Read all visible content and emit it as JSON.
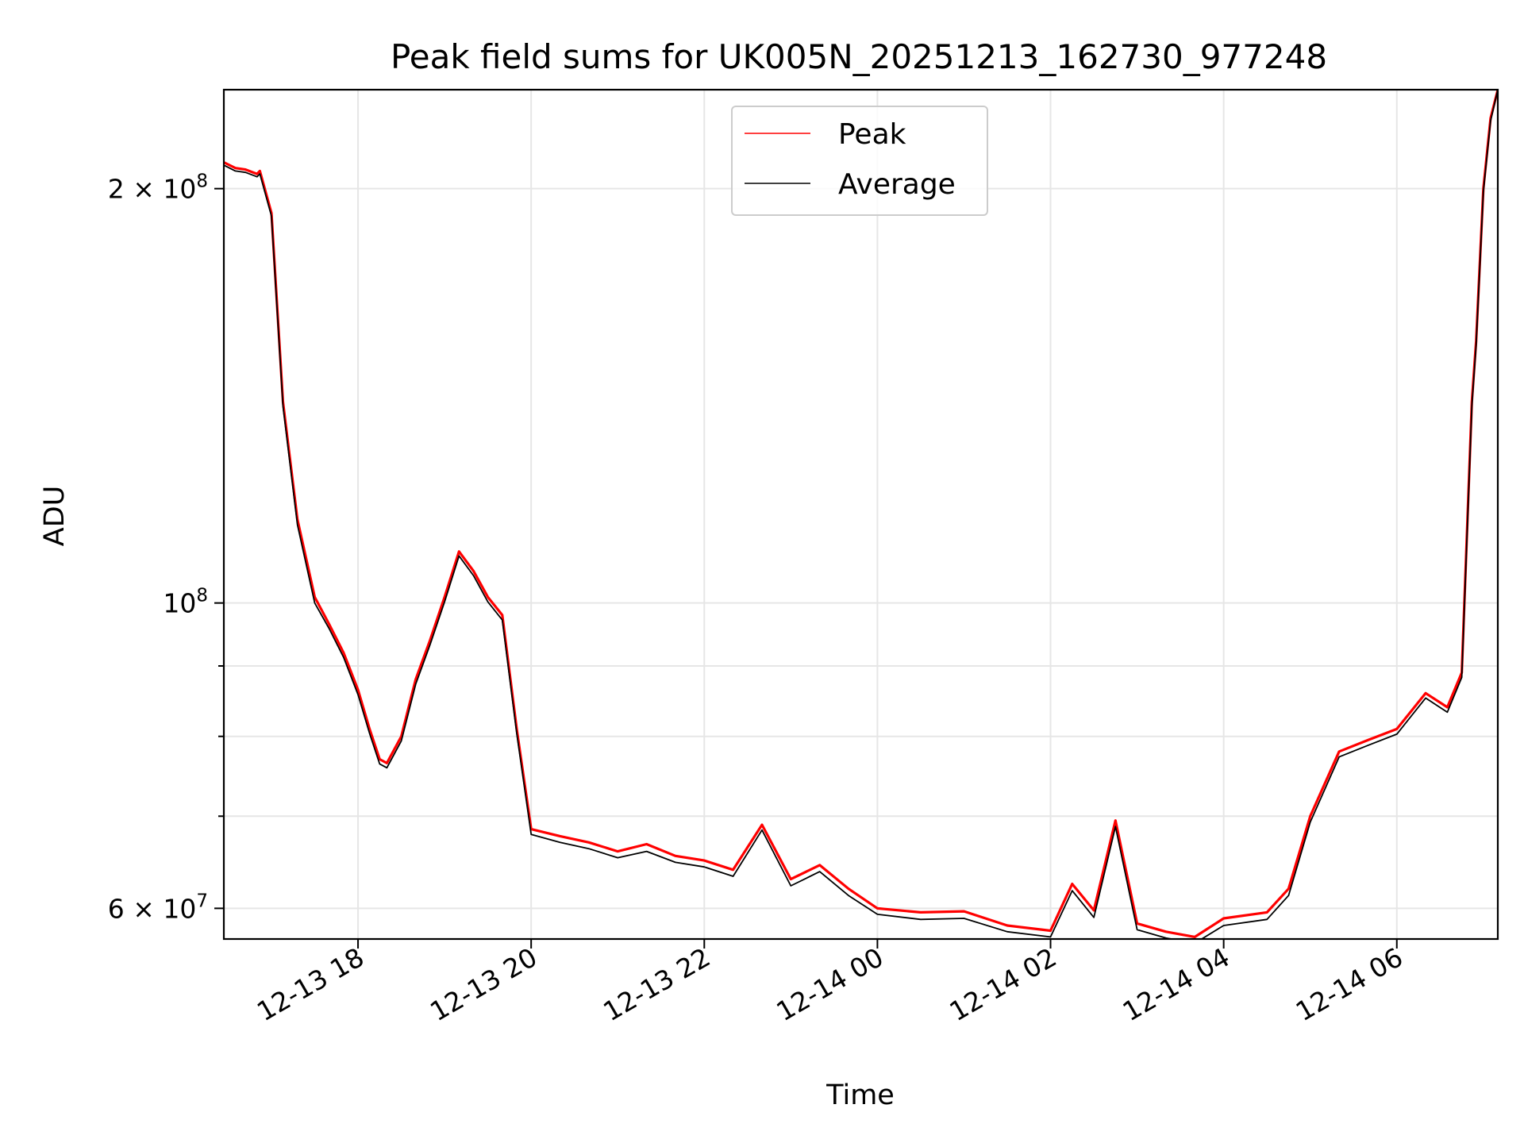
{
  "chart_data": {
    "type": "line",
    "title": "Peak field sums for UK005N_20251213_162730_977248",
    "xlabel": "Time",
    "ylabel": "ADU",
    "yscale": "log",
    "grid": true,
    "legend_position": "upper center",
    "xlim": [
      "2025-12-13 16:27",
      "2025-12-14 07:10"
    ],
    "ylim": [
      57000000,
      236000000
    ],
    "x_ticks": [
      {
        "t": "2025-12-13 18:00",
        "label": "12-13 18"
      },
      {
        "t": "2025-12-13 20:00",
        "label": "12-13 20"
      },
      {
        "t": "2025-12-13 22:00",
        "label": "12-13 22"
      },
      {
        "t": "2025-12-14 00:00",
        "label": "12-14 00"
      },
      {
        "t": "2025-12-14 02:00",
        "label": "12-14 02"
      },
      {
        "t": "2025-12-14 04:00",
        "label": "12-14 04"
      },
      {
        "t": "2025-12-14 06:00",
        "label": "12-14 06"
      }
    ],
    "y_major_ticks": [
      {
        "value": 60000000,
        "label": "6 × 10",
        "exp": "7"
      },
      {
        "value": 100000000,
        "label": "10",
        "exp": "8"
      },
      {
        "value": 200000000,
        "label": "2 × 10",
        "exp": "8"
      }
    ],
    "y_minor_ticks": [
      70000000,
      80000000,
      90000000
    ],
    "series": [
      {
        "name": "Peak",
        "color": "#ff0000",
        "x": [
          "2025-12-13 16:27",
          "2025-12-13 16:35",
          "2025-12-13 16:42",
          "2025-12-13 16:50",
          "2025-12-13 16:52",
          "2025-12-13 17:00",
          "2025-12-13 17:08",
          "2025-12-13 17:18",
          "2025-12-13 17:30",
          "2025-12-13 17:40",
          "2025-12-13 17:50",
          "2025-12-13 18:00",
          "2025-12-13 18:08",
          "2025-12-13 18:15",
          "2025-12-13 18:20",
          "2025-12-13 18:30",
          "2025-12-13 18:40",
          "2025-12-13 18:50",
          "2025-12-13 19:00",
          "2025-12-13 19:10",
          "2025-12-13 19:20",
          "2025-12-13 19:30",
          "2025-12-13 19:40",
          "2025-12-13 19:50",
          "2025-12-13 20:00",
          "2025-12-13 20:20",
          "2025-12-13 20:40",
          "2025-12-13 21:00",
          "2025-12-13 21:20",
          "2025-12-13 21:40",
          "2025-12-13 22:00",
          "2025-12-13 22:20",
          "2025-12-13 22:40",
          "2025-12-13 23:00",
          "2025-12-13 23:20",
          "2025-12-13 23:40",
          "2025-12-14 00:00",
          "2025-12-14 00:30",
          "2025-12-14 01:00",
          "2025-12-14 01:30",
          "2025-12-14 02:00",
          "2025-12-14 02:15",
          "2025-12-14 02:30",
          "2025-12-14 02:45",
          "2025-12-14 03:00",
          "2025-12-14 03:20",
          "2025-12-14 03:40",
          "2025-12-14 04:00",
          "2025-12-14 04:30",
          "2025-12-14 04:45",
          "2025-12-14 05:00",
          "2025-12-14 05:20",
          "2025-12-14 05:40",
          "2025-12-14 06:00",
          "2025-12-14 06:20",
          "2025-12-14 06:35",
          "2025-12-14 06:45",
          "2025-12-14 06:52",
          "2025-12-14 06:55",
          "2025-12-14 07:00",
          "2025-12-14 07:05",
          "2025-12-14 07:10"
        ],
        "y": [
          209000000,
          207000000,
          206500000,
          205000000,
          206000000,
          192000000,
          140000000,
          115000000,
          101000000,
          96500000,
          92000000,
          86500000,
          81000000,
          77000000,
          76500000,
          80000000,
          88000000,
          94000000,
          101000000,
          109000000,
          105500000,
          101000000,
          98000000,
          81000000,
          68500000,
          67700000,
          67000000,
          66000000,
          66800000,
          65500000,
          65000000,
          64000000,
          69000000,
          63000000,
          64500000,
          62000000,
          60000000,
          59600000,
          59700000,
          58300000,
          57800000,
          62500000,
          59800000,
          69500000,
          58500000,
          57700000,
          57200000,
          59000000,
          59600000,
          62000000,
          70000000,
          78000000,
          79500000,
          81000000,
          86000000,
          84000000,
          89000000,
          140000000,
          155000000,
          200000000,
          225000000,
          236000000
        ]
      },
      {
        "name": "Average",
        "color": "#000000",
        "x": [
          "2025-12-13 16:27",
          "2025-12-13 16:35",
          "2025-12-13 16:42",
          "2025-12-13 16:50",
          "2025-12-13 16:52",
          "2025-12-13 17:00",
          "2025-12-13 17:08",
          "2025-12-13 17:18",
          "2025-12-13 17:30",
          "2025-12-13 17:40",
          "2025-12-13 17:50",
          "2025-12-13 18:00",
          "2025-12-13 18:08",
          "2025-12-13 18:15",
          "2025-12-13 18:20",
          "2025-12-13 18:30",
          "2025-12-13 18:40",
          "2025-12-13 18:50",
          "2025-12-13 19:00",
          "2025-12-13 19:10",
          "2025-12-13 19:20",
          "2025-12-13 19:30",
          "2025-12-13 19:40",
          "2025-12-13 19:50",
          "2025-12-13 20:00",
          "2025-12-13 20:20",
          "2025-12-13 20:40",
          "2025-12-13 21:00",
          "2025-12-13 21:20",
          "2025-12-13 21:40",
          "2025-12-13 22:00",
          "2025-12-13 22:20",
          "2025-12-13 22:40",
          "2025-12-13 23:00",
          "2025-12-13 23:20",
          "2025-12-13 23:40",
          "2025-12-14 00:00",
          "2025-12-14 00:30",
          "2025-12-14 01:00",
          "2025-12-14 01:30",
          "2025-12-14 02:00",
          "2025-12-14 02:15",
          "2025-12-14 02:30",
          "2025-12-14 02:45",
          "2025-12-14 03:00",
          "2025-12-14 03:20",
          "2025-12-14 03:40",
          "2025-12-14 04:00",
          "2025-12-14 04:30",
          "2025-12-14 04:45",
          "2025-12-14 05:00",
          "2025-12-14 05:20",
          "2025-12-14 05:40",
          "2025-12-14 06:00",
          "2025-12-14 06:20",
          "2025-12-14 06:35",
          "2025-12-14 06:45",
          "2025-12-14 06:52",
          "2025-12-14 06:55",
          "2025-12-14 07:00",
          "2025-12-14 07:05",
          "2025-12-14 07:10"
        ],
        "y": [
          208000000,
          206000000,
          205500000,
          204000000,
          205000000,
          191000000,
          139000000,
          114000000,
          100000000,
          95800000,
          91300000,
          85800000,
          80400000,
          76400000,
          75900000,
          79400000,
          87300000,
          93300000,
          100200000,
          108200000,
          104700000,
          100200000,
          97200000,
          80400000,
          67900000,
          67000000,
          66300000,
          65300000,
          66000000,
          64800000,
          64300000,
          63300000,
          68400000,
          62300000,
          63800000,
          61300000,
          59400000,
          58900000,
          59000000,
          57700000,
          57200000,
          61800000,
          59100000,
          68800000,
          57900000,
          57100000,
          56600000,
          58300000,
          58900000,
          61300000,
          69300000,
          77300000,
          78800000,
          80300000,
          85300000,
          83300000,
          88300000,
          139000000,
          154000000,
          199000000,
          224000000,
          236000000
        ]
      }
    ]
  }
}
